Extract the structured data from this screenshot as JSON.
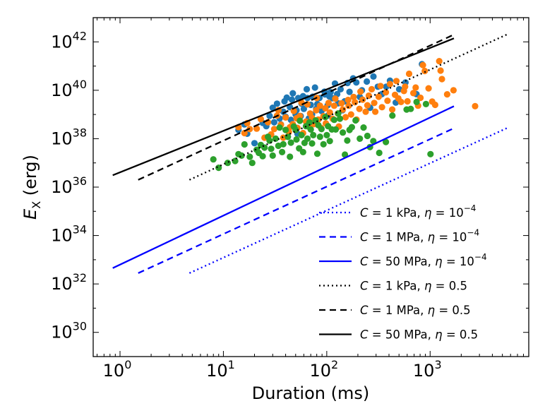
{
  "chart_data": {
    "type": "scatter",
    "title": "",
    "xlabel": "Duration (ms)",
    "ylabel_main": "E",
    "ylabel_sub": "X",
    "ylabel_unit": " (erg)",
    "xscale": "log",
    "yscale": "log",
    "xlim": [
      0.55,
      9000
    ],
    "ylim": [
      1e+29,
      1e+43
    ],
    "x_ticks": [
      {
        "value": 1,
        "base": "10",
        "exp": "0"
      },
      {
        "value": 10,
        "base": "10",
        "exp": "1"
      },
      {
        "value": 100,
        "base": "10",
        "exp": "2"
      },
      {
        "value": 1000,
        "base": "10",
        "exp": "3"
      }
    ],
    "y_ticks": [
      {
        "value": 1e+30,
        "base": "10",
        "exp": "30"
      },
      {
        "value": 1e+32,
        "base": "10",
        "exp": "32"
      },
      {
        "value": 1e+34,
        "base": "10",
        "exp": "34"
      },
      {
        "value": 1e+36,
        "base": "10",
        "exp": "36"
      },
      {
        "value": 1e+38,
        "base": "10",
        "exp": "38"
      },
      {
        "value": 1e+40,
        "base": "10",
        "exp": "40"
      },
      {
        "value": 1e+42,
        "base": "10",
        "exp": "42"
      }
    ],
    "legend_position": "lower-right",
    "lines": [
      {
        "name": "C = 1 kPa, η = 10^-4",
        "label_prefix": "C",
        "label_mid": " =  1 kPa, ",
        "label_eta": "η",
        "label_eq": " = 10",
        "label_exp": "−4",
        "color": "#0000ff",
        "style": "dotted",
        "x": [
          4.7,
          5500
        ],
        "y": [
          2.8e+32,
          2.7e+38
        ]
      },
      {
        "name": "C = 1 MPa, η = 10^-4",
        "label_prefix": "C",
        "label_mid": " =  1 MPa, ",
        "label_eta": "η",
        "label_eq": " = 10",
        "label_exp": "−4",
        "color": "#0000ff",
        "style": "dashed",
        "x": [
          1.5,
          1700
        ],
        "y": [
          2.8e+32,
          2.7e+38
        ]
      },
      {
        "name": "C = 50 MPa, η = 10^-4",
        "label_prefix": "C",
        "label_mid": " =  50 MPa, ",
        "label_eta": "η",
        "label_eq": " = 10",
        "label_exp": "−4",
        "color": "#0000ff",
        "style": "solid",
        "x": [
          0.85,
          1700
        ],
        "y": [
          4.5e+32,
          2.2e+39
        ]
      },
      {
        "name": "C = 1 kPa, η = 0.5",
        "label_prefix": "C",
        "label_mid": " =  1 kPa, ",
        "label_eta": "η",
        "label_eq": " = 0.5",
        "label_exp": "",
        "color": "#000000",
        "style": "dotted",
        "x": [
          4.7,
          5500
        ],
        "y": [
          2e+36,
          2e+42
        ]
      },
      {
        "name": "C = 1 MPa, η = 0.5",
        "label_prefix": "C",
        "label_mid": " =  1 MPa, ",
        "label_eta": "η",
        "label_eq": " = 0.5",
        "label_exp": "",
        "color": "#000000",
        "style": "dashed",
        "x": [
          1.5,
          1700
        ],
        "y": [
          2e+36,
          2e+42
        ]
      },
      {
        "name": "C = 50 MPa, η = 0.5",
        "label_prefix": "C",
        "label_mid": " =  50 MPa, ",
        "label_eta": "η",
        "label_eq": " = 0.5",
        "label_exp": "",
        "color": "#000000",
        "style": "solid",
        "x": [
          0.85,
          1700
        ],
        "y": [
          3.1e+36,
          1.4e+42
        ]
      }
    ],
    "scatter_series": [
      {
        "name": "blue population",
        "color": "#1f77b4",
        "points": [
          [
            14,
            2.3e+38
          ],
          [
            16,
            3.9e+38
          ],
          [
            17,
            1.6e+38
          ],
          [
            20,
            6.5e+37
          ],
          [
            24,
            4.5e+38
          ],
          [
            26,
            3.3e+38
          ],
          [
            28,
            8.8e+38
          ],
          [
            30,
            1.9e+39
          ],
          [
            31,
            4.8e+38
          ],
          [
            33,
            2.8e+39
          ],
          [
            35,
            6.8e+38
          ],
          [
            36,
            3.9e+38
          ],
          [
            38,
            1.3e+39
          ],
          [
            39,
            3.5e+39
          ],
          [
            40,
            8.1e+38
          ],
          [
            41,
            5e+39
          ],
          [
            42,
            1.2e+38
          ],
          [
            44,
            2e+39
          ],
          [
            45,
            6e+38
          ],
          [
            46,
            4.1e+39
          ],
          [
            47,
            7.5e+39
          ],
          [
            50,
            1e+39
          ],
          [
            51,
            1.5e+39
          ],
          [
            52,
            1.6e+38
          ],
          [
            53,
            4.8e+39
          ],
          [
            56,
            8.6e+38
          ],
          [
            57,
            2.8e+39
          ],
          [
            59,
            5.7e+39
          ],
          [
            60,
            1.7e+39
          ],
          [
            64,
            1.1e+40
          ],
          [
            65,
            4.8e+39
          ],
          [
            67,
            6.9e+38
          ],
          [
            70,
            2.5e+39
          ],
          [
            72,
            1e+39
          ],
          [
            73,
            5.4e+39
          ],
          [
            77,
            1.3e+40
          ],
          [
            79,
            1.7e+39
          ],
          [
            81,
            2.7e+39
          ],
          [
            85,
            4.8e+39
          ],
          [
            89,
            1.4e+39
          ],
          [
            95,
            8.8e+39
          ],
          [
            96,
            6.7e+39
          ],
          [
            102,
            2.4e+39
          ],
          [
            103,
            9.1e+38
          ],
          [
            106,
            5.6e+39
          ],
          [
            109,
            8.3e+39
          ],
          [
            114,
            4.7e+39
          ],
          [
            120,
            1.9e+40
          ],
          [
            126,
            7e+39
          ],
          [
            129,
            2.9e+39
          ],
          [
            136,
            1.1e+40
          ],
          [
            142,
            1.5e+39
          ],
          [
            149,
            3.5e+39
          ],
          [
            159,
            2e+40
          ],
          [
            166,
            8.6e+39
          ],
          [
            180,
            3.1e+40
          ],
          [
            193,
            2.1e+40
          ],
          [
            209,
            5.3e+39
          ],
          [
            219,
            1e+40
          ],
          [
            244,
            2.3e+40
          ],
          [
            263,
            1.9e+39
          ],
          [
            283,
            3.7e+40
          ],
          [
            312,
            1.4e+40
          ],
          [
            341,
            6.9e+39
          ],
          [
            376,
            1.4e+40
          ],
          [
            409,
            2.5e+40
          ],
          [
            465,
            3.1e+39
          ],
          [
            502,
            1.1e+40
          ],
          [
            578,
            2.1e+40
          ],
          [
            739,
            6.9e+39
          ],
          [
            834,
            1.2e+41
          ]
        ]
      },
      {
        "name": "orange population",
        "color": "#ff7f0e",
        "points": [
          [
            14,
            3e+38
          ],
          [
            16,
            1.7e+38
          ],
          [
            17,
            4.4e+38
          ],
          [
            18,
            2.5e+38
          ],
          [
            21,
            2.6e+38
          ],
          [
            23,
            6.5e+38
          ],
          [
            25,
            1.1e+38
          ],
          [
            27,
            4.8e+38
          ],
          [
            29,
            1.5e+38
          ],
          [
            31,
            2.5e+38
          ],
          [
            33,
            9e+38
          ],
          [
            34,
            1.5e+39
          ],
          [
            36,
            3.8e+38
          ],
          [
            38,
            1.1e+38
          ],
          [
            40,
            7.5e+38
          ],
          [
            43,
            1.9e+38
          ],
          [
            44,
            3e+38
          ],
          [
            47,
            4e+38
          ],
          [
            48,
            1.4e+39
          ],
          [
            51,
            7e+38
          ],
          [
            52,
            2.8e+38
          ],
          [
            55,
            8.7e+38
          ],
          [
            57,
            3.1e+39
          ],
          [
            59,
            1.7e+38
          ],
          [
            63,
            5.1e+38
          ],
          [
            65,
            2.6e+39
          ],
          [
            68,
            3e+38
          ],
          [
            69,
            1.1e+39
          ],
          [
            72,
            7.2e+38
          ],
          [
            75,
            4e+38
          ],
          [
            79,
            1.5e+39
          ],
          [
            80,
            4.8e+39
          ],
          [
            83,
            6.2e+38
          ],
          [
            86,
            2.3e+39
          ],
          [
            88,
            2.8e+38
          ],
          [
            93,
            8.5e+38
          ],
          [
            97,
            1.8e+39
          ],
          [
            98,
            4.3e+38
          ],
          [
            104,
            3e+39
          ],
          [
            107,
            1.2e+39
          ],
          [
            114,
            6.6e+38
          ],
          [
            118,
            2.3e+39
          ],
          [
            121,
            4.5e+39
          ],
          [
            128,
            1.1e+39
          ],
          [
            131,
            3.2e+38
          ],
          [
            139,
            2.9e+39
          ],
          [
            143,
            1.6e+39
          ],
          [
            152,
            7.7e+38
          ],
          [
            161,
            4e+39
          ],
          [
            163,
            2.3e+39
          ],
          [
            172,
            1e+39
          ],
          [
            182,
            5.3e+39
          ],
          [
            187,
            3.2e+39
          ],
          [
            194,
            6.2e+38
          ],
          [
            207,
            1.7e+39
          ],
          [
            212,
            8.8e+39
          ],
          [
            222,
            4.1e+39
          ],
          [
            238,
            1.3e+39
          ],
          [
            247,
            2.4e+39
          ],
          [
            255,
            6e+39
          ],
          [
            272,
            1.1e+40
          ],
          [
            288,
            3e+39
          ],
          [
            295,
            1.3e+39
          ],
          [
            318,
            5.4e+39
          ],
          [
            331,
            1.5e+40
          ],
          [
            342,
            2e+39
          ],
          [
            373,
            8.2e+39
          ],
          [
            387,
            3.7e+39
          ],
          [
            409,
            1.8e+40
          ],
          [
            430,
            1.6e+39
          ],
          [
            457,
            6.5e+39
          ],
          [
            472,
            2.4e+40
          ],
          [
            493,
            4.6e+39
          ],
          [
            523,
            3.3e+39
          ],
          [
            558,
            9.3e+39
          ],
          [
            572,
            1.4e+40
          ],
          [
            604,
            3.5e+39
          ],
          [
            626,
            4.8e+40
          ],
          [
            688,
            7.6e+39
          ],
          [
            725,
            1.3e+40
          ],
          [
            764,
            2.3e+39
          ],
          [
            807,
            4.9e+39
          ],
          [
            852,
            1.1e+41
          ],
          [
            887,
            6.3e+40
          ],
          [
            966,
            1.2e+40
          ],
          [
            1047,
            3.4e+39
          ],
          [
            1119,
            2.5e+39
          ],
          [
            1225,
            1.6e+41
          ],
          [
            1262,
            6.5e+40
          ],
          [
            1300,
            2.9e+40
          ],
          [
            1462,
            6.8e+39
          ],
          [
            1683,
            1e+40
          ],
          [
            2723,
            2.2e+39
          ]
        ]
      },
      {
        "name": "green population",
        "color": "#2ca02c",
        "points": [
          [
            8,
            1.4e+37
          ],
          [
            9,
            6.3e+36
          ],
          [
            11,
            1e+37
          ],
          [
            13,
            1.2e+37
          ],
          [
            14,
            2.3e+37
          ],
          [
            15,
            2e+37
          ],
          [
            16,
            5.8e+37
          ],
          [
            18,
            1.8e+37
          ],
          [
            19,
            1e+37
          ],
          [
            21,
            3.5e+37
          ],
          [
            22,
            2.6e+37
          ],
          [
            23,
            5.5e+37
          ],
          [
            24,
            1.9e+37
          ],
          [
            25,
            4.3e+37
          ],
          [
            27,
            1.2e+38
          ],
          [
            28,
            8.3e+37
          ],
          [
            29,
            3.8e+37
          ],
          [
            30,
            2e+37
          ],
          [
            32,
            1e+38
          ],
          [
            34,
            5.1e+37
          ],
          [
            35,
            2.9e+38
          ],
          [
            37,
            2.8e+37
          ],
          [
            38,
            5.9e+37
          ],
          [
            40,
            2.3e+38
          ],
          [
            42,
            1.2e+38
          ],
          [
            44,
            1.8e+37
          ],
          [
            45,
            6.9e+37
          ],
          [
            48,
            3.2e+38
          ],
          [
            50,
            2.3e+38
          ],
          [
            51,
            9.3e+37
          ],
          [
            54,
            4e+37
          ],
          [
            55,
            5.5e+38
          ],
          [
            57,
            1.4e+38
          ],
          [
            59,
            2.8e+37
          ],
          [
            61,
            6.7e+37
          ],
          [
            63,
            3.3e+38
          ],
          [
            65,
            1e+38
          ],
          [
            68,
            4.7e+38
          ],
          [
            70,
            2.4e+38
          ],
          [
            72,
            6.4e+37
          ],
          [
            74,
            1.4e+38
          ],
          [
            78,
            5.7e+38
          ],
          [
            81,
            2.4e+37
          ],
          [
            83,
            3.6e+38
          ],
          [
            86,
            1.2e+38
          ],
          [
            89,
            2.5e+38
          ],
          [
            93,
            5.9e+37
          ],
          [
            97,
            7.8e+38
          ],
          [
            100,
            1.4e+38
          ],
          [
            103,
            3.3e+38
          ],
          [
            107,
            8e+37
          ],
          [
            112,
            2.4e+38
          ],
          [
            118,
            6e+38
          ],
          [
            122,
            2.4e+38
          ],
          [
            129,
            1.1e+39
          ],
          [
            134,
            6.7e+38
          ],
          [
            143,
            1.8e+38
          ],
          [
            150,
            2.2e+37
          ],
          [
            158,
            8.4e+37
          ],
          [
            166,
            2.3e+38
          ],
          [
            175,
            3e+38
          ],
          [
            190,
            5.7e+38
          ],
          [
            209,
            1e+38
          ],
          [
            227,
            2.9e+38
          ],
          [
            247,
            1.3e+38
          ],
          [
            262,
            4.5e+37
          ],
          [
            282,
            7.9e+37
          ],
          [
            322,
            2.6e+37
          ],
          [
            373,
            7.3e+37
          ],
          [
            431,
            9e+38
          ],
          [
            593,
            1.6e+39
          ],
          [
            649,
            1.7e+39
          ],
          [
            740,
            3.3e+39
          ],
          [
            912,
            2.7e+39
          ],
          [
            1009,
            2.3e+37
          ]
        ]
      }
    ]
  }
}
